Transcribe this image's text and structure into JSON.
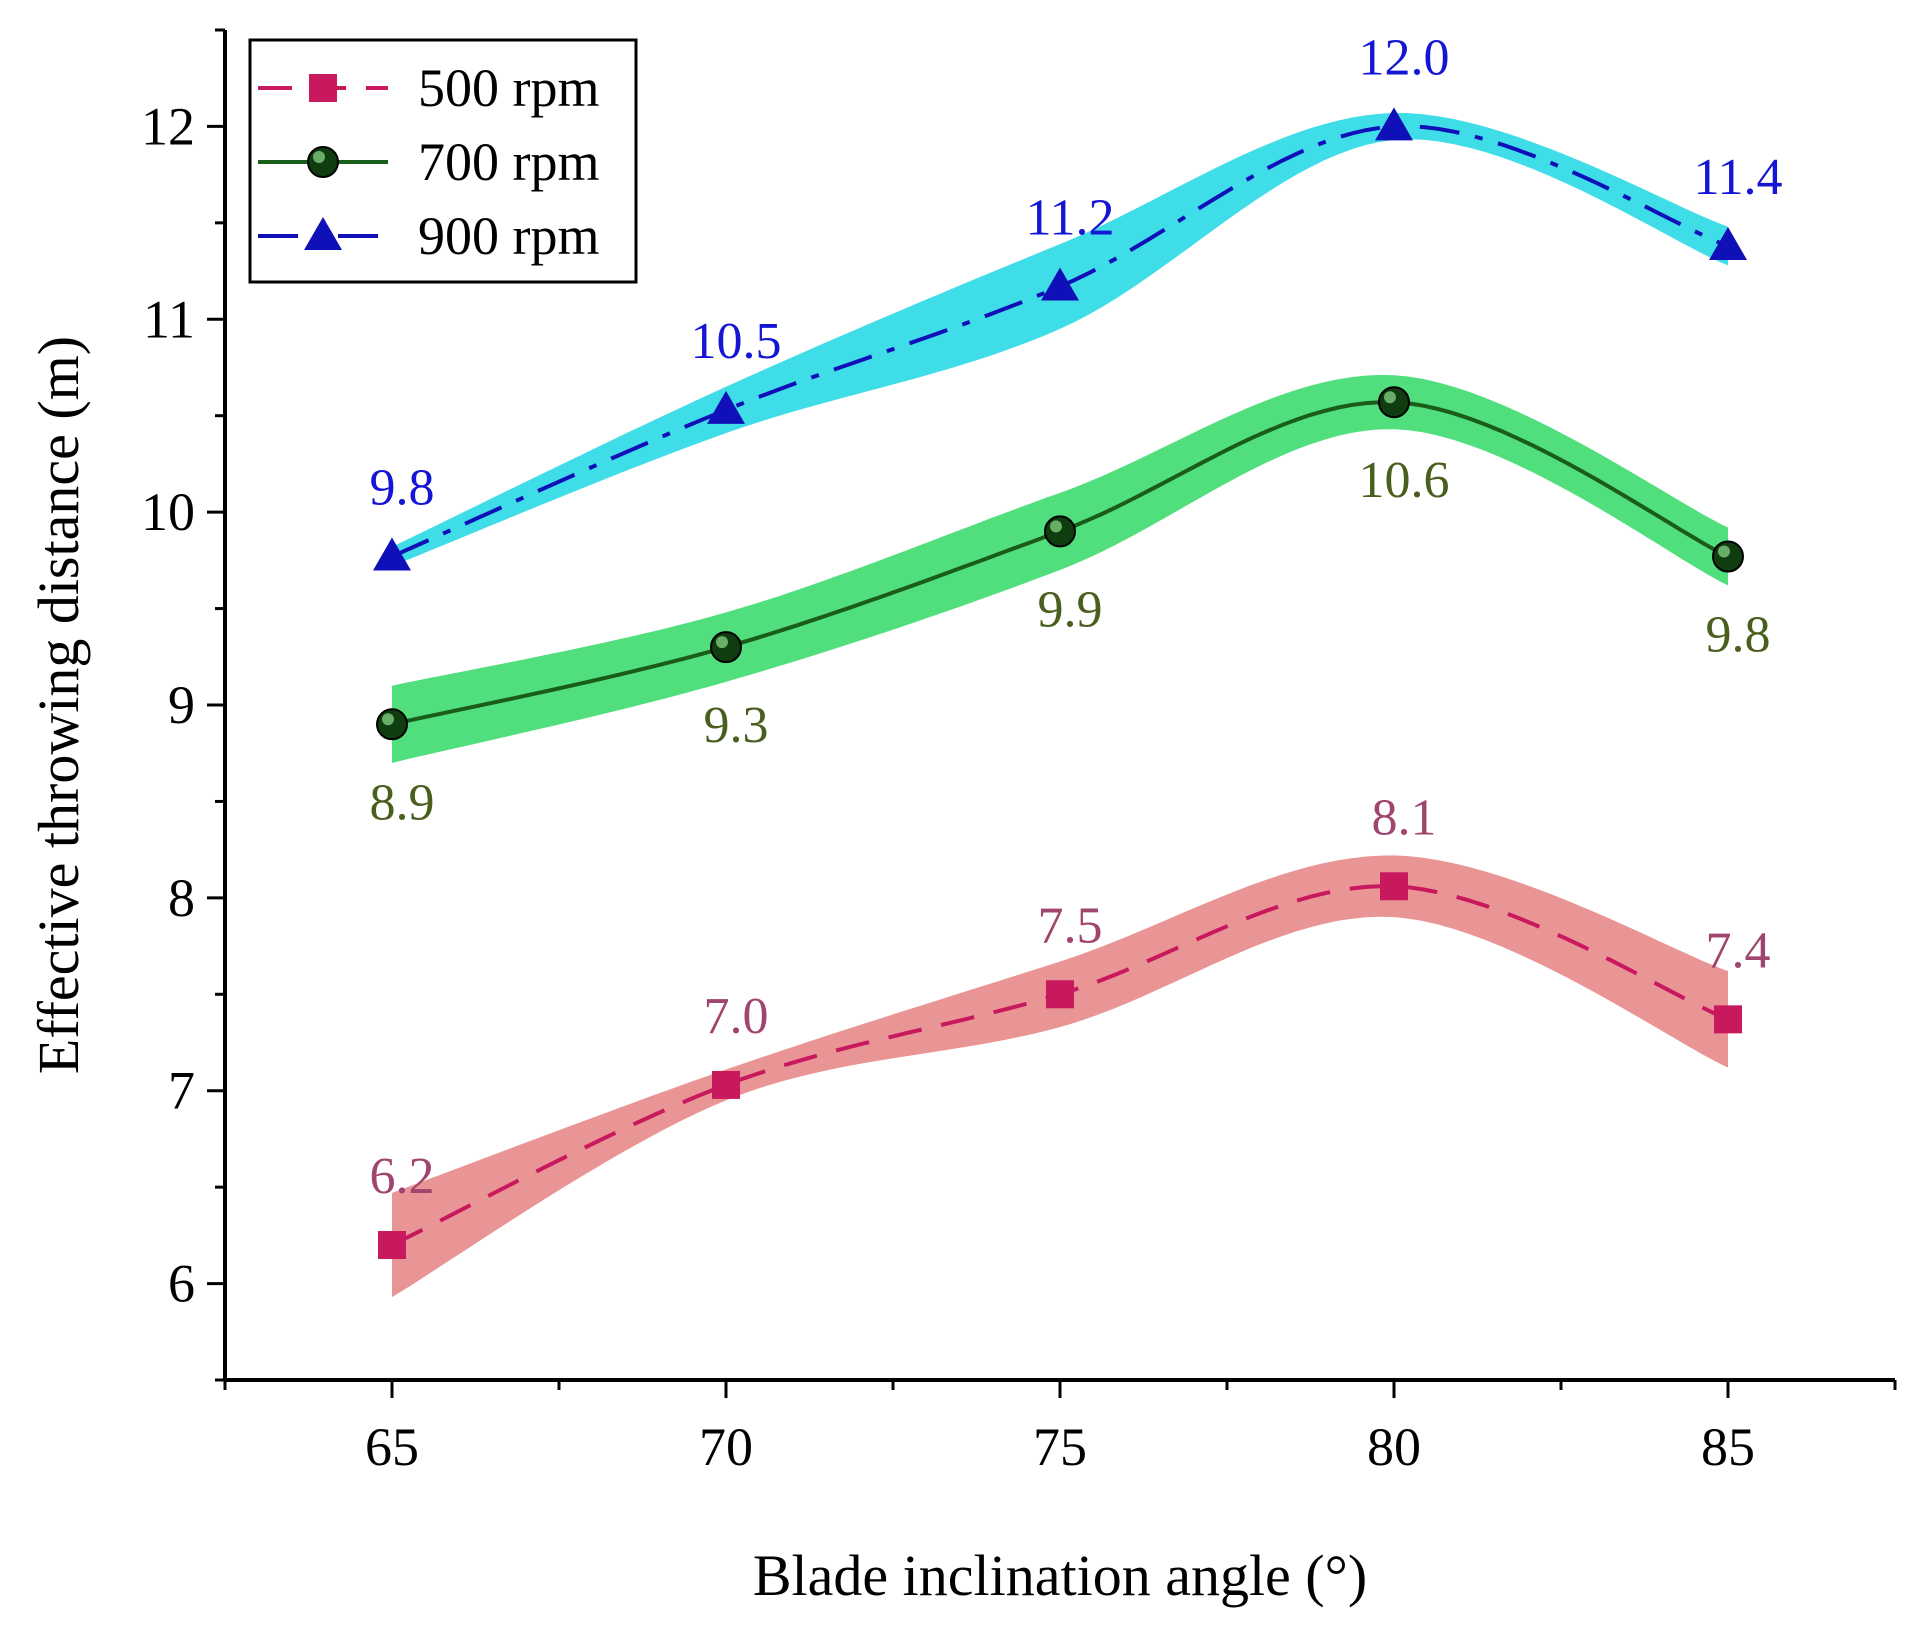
{
  "chart_data": {
    "type": "line",
    "title": "",
    "xlabel": "Blade inclination angle (°)",
    "ylabel": "Effective throwing distance (m)",
    "x": [
      65,
      70,
      75,
      80,
      85
    ],
    "xlim": [
      62.5,
      87.5
    ],
    "ylim": [
      5.5,
      12.5
    ],
    "xticks": [
      65,
      70,
      75,
      80,
      85
    ],
    "yticks": [
      6,
      7,
      8,
      9,
      10,
      11,
      12
    ],
    "grid": false,
    "legend_position": "top-left",
    "series": [
      {
        "name": "500 rpm",
        "values": [
          6.2,
          7.03,
          7.5,
          8.06,
          7.37
        ],
        "labels": [
          "6.2",
          "7.0",
          "7.5",
          "8.1",
          "7.4"
        ],
        "label_side": [
          "above",
          "above",
          "above",
          "above",
          "above"
        ],
        "band_half_width": [
          0.27,
          0.08,
          0.17,
          0.16,
          0.25
        ],
        "line_color": "#c8185e",
        "band_color": "#e88a8a",
        "label_color": "#a0456e",
        "marker": "square",
        "line_style": "dash"
      },
      {
        "name": "700 rpm",
        "values": [
          8.9,
          9.3,
          9.9,
          10.57,
          9.77
        ],
        "labels": [
          "8.9",
          "9.3",
          "9.9",
          "10.6",
          "9.8"
        ],
        "label_side": [
          "below",
          "below",
          "below",
          "below",
          "below"
        ],
        "band_half_width": [
          0.2,
          0.18,
          0.2,
          0.14,
          0.15
        ],
        "line_color": "#1a5c1a",
        "band_color": "#3ddc6e",
        "label_color": "#4a5e1e",
        "marker": "sphere",
        "line_style": "solid"
      },
      {
        "name": "900 rpm",
        "values": [
          9.77,
          10.53,
          11.17,
          12.0,
          11.38
        ],
        "labels": [
          "9.8",
          "10.5",
          "11.2",
          "12.0",
          "11.4"
        ],
        "label_side": [
          "above",
          "above",
          "above",
          "above",
          "above"
        ],
        "band_half_width": [
          0.05,
          0.12,
          0.22,
          0.07,
          0.1
        ],
        "line_color": "#1010b8",
        "band_color": "#2ad9e6",
        "label_color": "#1515d4",
        "marker": "triangle",
        "line_style": "dashdot"
      }
    ]
  }
}
